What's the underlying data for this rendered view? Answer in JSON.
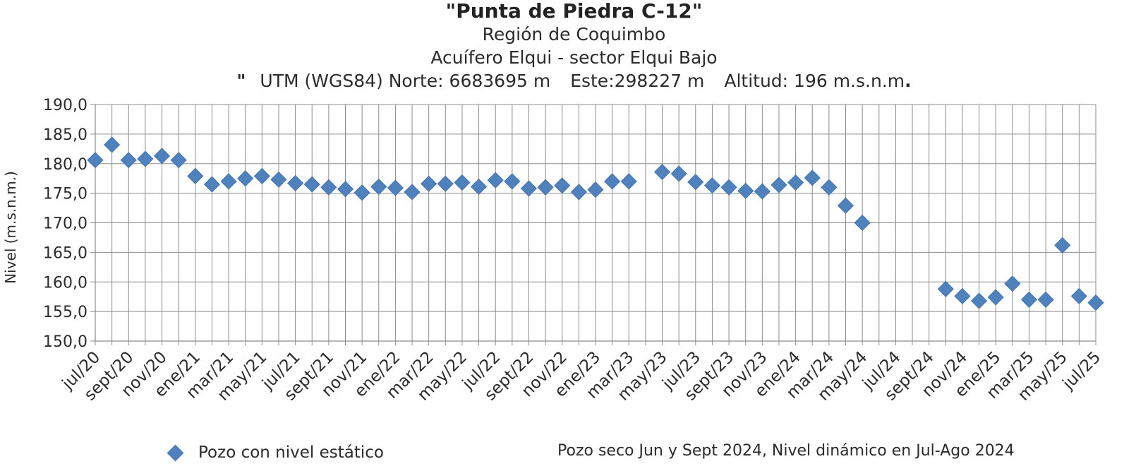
{
  "chart_data": {
    "type": "scatter",
    "title": "\"Punta de Piedra C-12\"",
    "subtitle_lines": [
      "Región de Coquimbo",
      "Acuífero Elqui - sector Elqui Bajo"
    ],
    "coordinates": {
      "open_quote": "\"",
      "utm_norte": "UTM (WGS84) Norte: 6683695 m",
      "este": "Este:298227 m",
      "altitud": "Altitud: 196 m.s.n.m",
      "period": "."
    },
    "ylabel": "Nivel (m.s.n.m.)",
    "ylim": [
      150,
      190
    ],
    "yticks": [
      "150,0",
      "155,0",
      "160,0",
      "165,0",
      "170,0",
      "175,0",
      "180,0",
      "185,0",
      "190,0"
    ],
    "xlim": [
      "2020-07",
      "2025-07"
    ],
    "xticks": [
      "jul/20",
      "sept/20",
      "nov/20",
      "ene/21",
      "mar/21",
      "may/21",
      "jul/21",
      "sept/21",
      "nov/21",
      "ene/22",
      "mar/22",
      "may/22",
      "jul/22",
      "sept/22",
      "nov/22",
      "ene/23",
      "mar/23",
      "may/23",
      "jul/23",
      "sept/23",
      "nov/23",
      "ene/24",
      "mar/24",
      "may/24",
      "jul/24",
      "sept/24",
      "nov/24",
      "ene/25",
      "mar/25",
      "may/25",
      "jul/25"
    ],
    "grid": true,
    "legend_position": "bottom-left",
    "series": [
      {
        "name": "Pozo con nivel estático",
        "color": "#4f81bd",
        "points": [
          [
            "2020-07",
            180.6
          ],
          [
            "2020-08",
            183.2
          ],
          [
            "2020-09",
            180.6
          ],
          [
            "2020-10",
            180.8
          ],
          [
            "2020-11",
            181.3
          ],
          [
            "2020-12",
            180.6
          ],
          [
            "2021-01",
            177.9
          ],
          [
            "2021-02",
            176.5
          ],
          [
            "2021-03",
            177.0
          ],
          [
            "2021-04",
            177.5
          ],
          [
            "2021-05",
            177.9
          ],
          [
            "2021-06",
            177.3
          ],
          [
            "2021-07",
            176.7
          ],
          [
            "2021-08",
            176.5
          ],
          [
            "2021-09",
            176.0
          ],
          [
            "2021-10",
            175.7
          ],
          [
            "2021-11",
            175.1
          ],
          [
            "2021-12",
            176.1
          ],
          [
            "2022-01",
            175.9
          ],
          [
            "2022-02",
            175.2
          ],
          [
            "2022-03",
            176.6
          ],
          [
            "2022-04",
            176.6
          ],
          [
            "2022-05",
            176.8
          ],
          [
            "2022-06",
            176.1
          ],
          [
            "2022-07",
            177.2
          ],
          [
            "2022-08",
            177.0
          ],
          [
            "2022-09",
            175.8
          ],
          [
            "2022-10",
            176.0
          ],
          [
            "2022-11",
            176.3
          ],
          [
            "2022-12",
            175.2
          ],
          [
            "2023-01",
            175.6
          ],
          [
            "2023-02",
            177.0
          ],
          [
            "2023-03",
            177.0
          ],
          [
            "2023-05",
            178.6
          ],
          [
            "2023-06",
            178.3
          ],
          [
            "2023-07",
            176.9
          ],
          [
            "2023-08",
            176.3
          ],
          [
            "2023-09",
            176.0
          ],
          [
            "2023-10",
            175.4
          ],
          [
            "2023-11",
            175.3
          ],
          [
            "2023-12",
            176.4
          ],
          [
            "2024-01",
            176.8
          ],
          [
            "2024-02",
            177.6
          ],
          [
            "2024-03",
            176.0
          ],
          [
            "2024-04",
            172.9
          ],
          [
            "2024-05",
            170.0
          ],
          [
            "2024-10",
            158.8
          ],
          [
            "2024-11",
            157.6
          ],
          [
            "2024-12",
            156.8
          ],
          [
            "2025-01",
            157.4
          ],
          [
            "2025-02",
            159.7
          ],
          [
            "2025-03",
            157.0
          ],
          [
            "2025-04",
            157.0
          ],
          [
            "2025-05",
            166.2
          ],
          [
            "2025-06",
            157.6
          ],
          [
            "2025-07",
            156.5
          ]
        ]
      }
    ],
    "note": "Pozo seco Jun y Sept 2024, Nivel dinámico en Jul-Ago 2024"
  }
}
